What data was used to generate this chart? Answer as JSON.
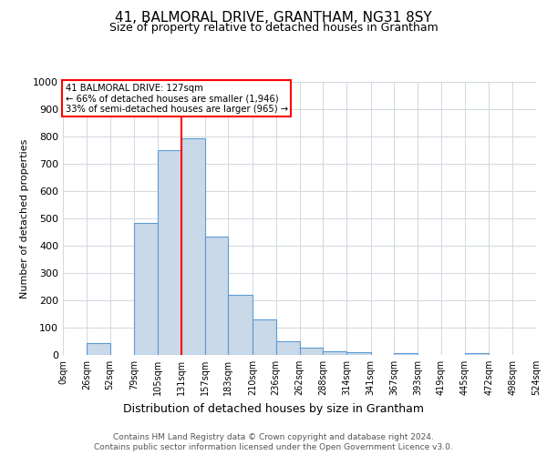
{
  "title": "41, BALMORAL DRIVE, GRANTHAM, NG31 8SY",
  "subtitle": "Size of property relative to detached houses in Grantham",
  "xlabel": "Distribution of detached houses by size in Grantham",
  "ylabel": "Number of detached properties",
  "footnote1": "Contains HM Land Registry data © Crown copyright and database right 2024.",
  "footnote2": "Contains public sector information licensed under the Open Government Licence v3.0.",
  "bin_edges": [
    0,
    26,
    52,
    79,
    105,
    131,
    157,
    183,
    210,
    236,
    262,
    288,
    314,
    341,
    367,
    393,
    419,
    445,
    472,
    498,
    524
  ],
  "bar_heights": [
    0,
    45,
    0,
    485,
    750,
    795,
    435,
    220,
    130,
    50,
    28,
    15,
    10,
    0,
    8,
    0,
    0,
    8,
    0,
    0
  ],
  "bar_color": "#c9d9e8",
  "bar_edge_color": "#5b9bd5",
  "red_line_x": 131,
  "annotation_title": "41 BALMORAL DRIVE: 127sqm",
  "annotation_line1": "← 66% of detached houses are smaller (1,946)",
  "annotation_line2": "33% of semi-detached houses are larger (965) →",
  "ylim": [
    0,
    1000
  ],
  "xlim": [
    0,
    524
  ],
  "background_color": "#ffffff",
  "grid_color": "#d0d8e0",
  "title_fontsize": 11,
  "subtitle_fontsize": 9,
  "ylabel_fontsize": 8,
  "xlabel_fontsize": 9,
  "ytick_fontsize": 8,
  "xtick_fontsize": 7
}
